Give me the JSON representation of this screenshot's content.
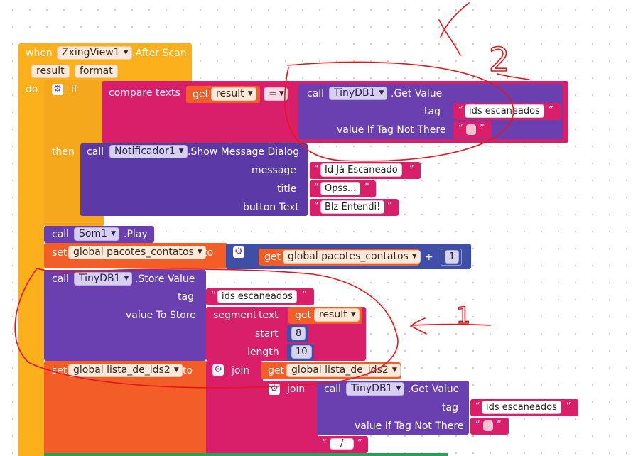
{
  "event": {
    "when": "when",
    "component": "ZxingView1",
    "event_name": ".After Scan",
    "params": [
      "result",
      "format"
    ],
    "do": "do"
  },
  "if_block": {
    "if": "if",
    "then": "then",
    "compare": {
      "label": "compare texts",
      "get": "get",
      "var": "result",
      "op": "=",
      "call": "call",
      "component": "TinyDB1",
      "method": ".Get Value",
      "tag_label": "tag",
      "tag_value": "ids escaneados",
      "default_label": "value If Tag Not There",
      "default_value": ""
    },
    "dialog": {
      "call": "call",
      "component": "Notificador1",
      "method": ".Show Message Dialog",
      "message_label": "message",
      "message_value": "Id Já Escaneado",
      "title_label": "title",
      "title_value": "Opss...",
      "button_label": "button Text",
      "button_value": "Blz Entendi!"
    }
  },
  "som": {
    "call": "call",
    "component": "Som1",
    "method": ".Play"
  },
  "set_pacotes": {
    "set": "set",
    "var": "global pacotes_contatos",
    "to": "to",
    "get": "get",
    "get_var": "global pacotes_contatos",
    "op": "+",
    "num": "1"
  },
  "store": {
    "call": "call",
    "component": "TinyDB1",
    "method": ".Store Value",
    "tag_label": "tag",
    "tag_value": "ids escaneados",
    "value_label": "value To Store",
    "segment": "segment",
    "text_label": "text",
    "get": "get",
    "var": "result",
    "start_label": "start",
    "start_value": "8",
    "length_label": "length",
    "length_value": "10"
  },
  "set_lista": {
    "set": "set",
    "var": "global lista_de_ids2",
    "to": "to",
    "join": "join",
    "get": "get",
    "get_var": "global lista_de_ids2",
    "join2": "join",
    "call": "call",
    "component": "TinyDB1",
    "method": ".Get Value",
    "tag_label": "tag",
    "tag_value": "ids escaneados",
    "default_label": "value If Tag Not There",
    "default_value": "",
    "sep_value": "/"
  },
  "annotations": {
    "mark1": "1",
    "mark2": "2"
  },
  "colors": {
    "event": "#fbb01c",
    "component": "#6a3fb0",
    "text": "#d91e6a",
    "variable": "#f35d28",
    "math": "#3f4fa8",
    "ink": "#e8141c"
  }
}
